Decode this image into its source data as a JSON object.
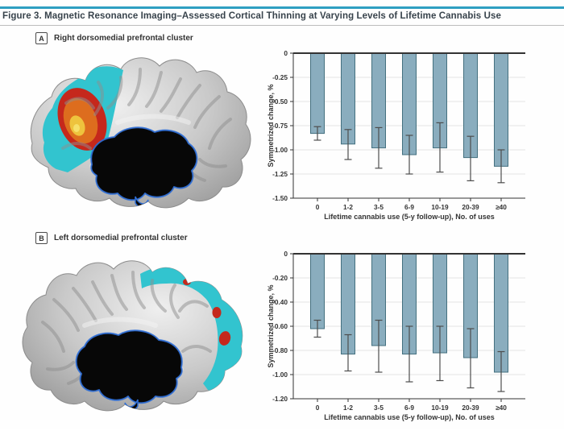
{
  "figure": {
    "title": "Figure 3. Magnetic Resonance Imaging–Assessed Cortical Thinning at Varying Levels of Lifetime Cannabis Use"
  },
  "panels": [
    {
      "key": "A",
      "caption": "Right dorsomedial prefrontal cluster",
      "brain_icon": "right-hemisphere-medial-brain"
    },
    {
      "key": "B",
      "caption": "Left dorsomedial prefrontal cluster",
      "brain_icon": "left-hemisphere-medial-brain"
    }
  ],
  "colors": {
    "accent_teal": "#2e9fc1",
    "title_text": "#38434c",
    "bar_fill": "#8aadbe",
    "bar_border": "#44707f",
    "error_bar": "#4d4d4d",
    "axis_text": "#333333",
    "gridline": "#e4e4e4",
    "brain_highlight_cyan": "#32c4cf",
    "cluster_red": "#c5281c",
    "cluster_orange": "#dd6d1e",
    "cluster_yellow": "#eec33d",
    "ventricle_outline_blue": "#2f6fd8"
  },
  "chart_data": [
    {
      "type": "bar",
      "panel": "A",
      "title": "Right dorsomedial prefrontal cluster",
      "categories": [
        "0",
        "1-2",
        "3-5",
        "6-9",
        "10-19",
        "20-39",
        "≥40"
      ],
      "values": [
        -0.83,
        -0.94,
        -0.98,
        -1.05,
        -0.98,
        -1.08,
        -1.17
      ],
      "error_high": [
        -0.76,
        -0.79,
        -0.77,
        -0.85,
        -0.72,
        -0.86,
        -1.0
      ],
      "error_low": [
        -0.9,
        -1.1,
        -1.19,
        -1.25,
        -1.23,
        -1.32,
        -1.34
      ],
      "xlabel": "Lifetime cannabis use (5-y follow-up), No. of uses",
      "ylabel": "Symmetrized change, %",
      "ylim": [
        0,
        -1.5
      ],
      "yticks": [
        0,
        -0.25,
        -0.5,
        -0.75,
        -1.0,
        -1.25,
        -1.5
      ],
      "ytick_labels": [
        "0",
        "-0.25",
        "-0.50",
        "-0.75",
        "-1.00",
        "-1.25",
        "-1.50"
      ],
      "grid": "light horizontal gridlines",
      "legend": "none"
    },
    {
      "type": "bar",
      "panel": "B",
      "title": "Left dorsomedial prefrontal cluster",
      "categories": [
        "0",
        "1-2",
        "3-5",
        "6-9",
        "10-19",
        "20-39",
        "≥40"
      ],
      "values": [
        -0.62,
        -0.83,
        -0.76,
        -0.83,
        -0.82,
        -0.86,
        -0.98
      ],
      "error_high": [
        -0.55,
        -0.67,
        -0.55,
        -0.6,
        -0.6,
        -0.62,
        -0.81
      ],
      "error_low": [
        -0.69,
        -0.97,
        -0.98,
        -1.06,
        -1.05,
        -1.11,
        -1.14
      ],
      "xlabel": "Lifetime cannabis use (5-y follow-up), No. of uses",
      "ylabel": "Symmetrized change, %",
      "ylim": [
        0,
        -1.2
      ],
      "yticks": [
        0,
        -0.2,
        -0.4,
        -0.6,
        -0.8,
        -1.0,
        -1.2
      ],
      "ytick_labels": [
        "0",
        "-0.20",
        "-0.40",
        "-0.60",
        "-0.80",
        "-1.00",
        "-1.20"
      ],
      "grid": "light horizontal gridlines",
      "legend": "none"
    }
  ]
}
